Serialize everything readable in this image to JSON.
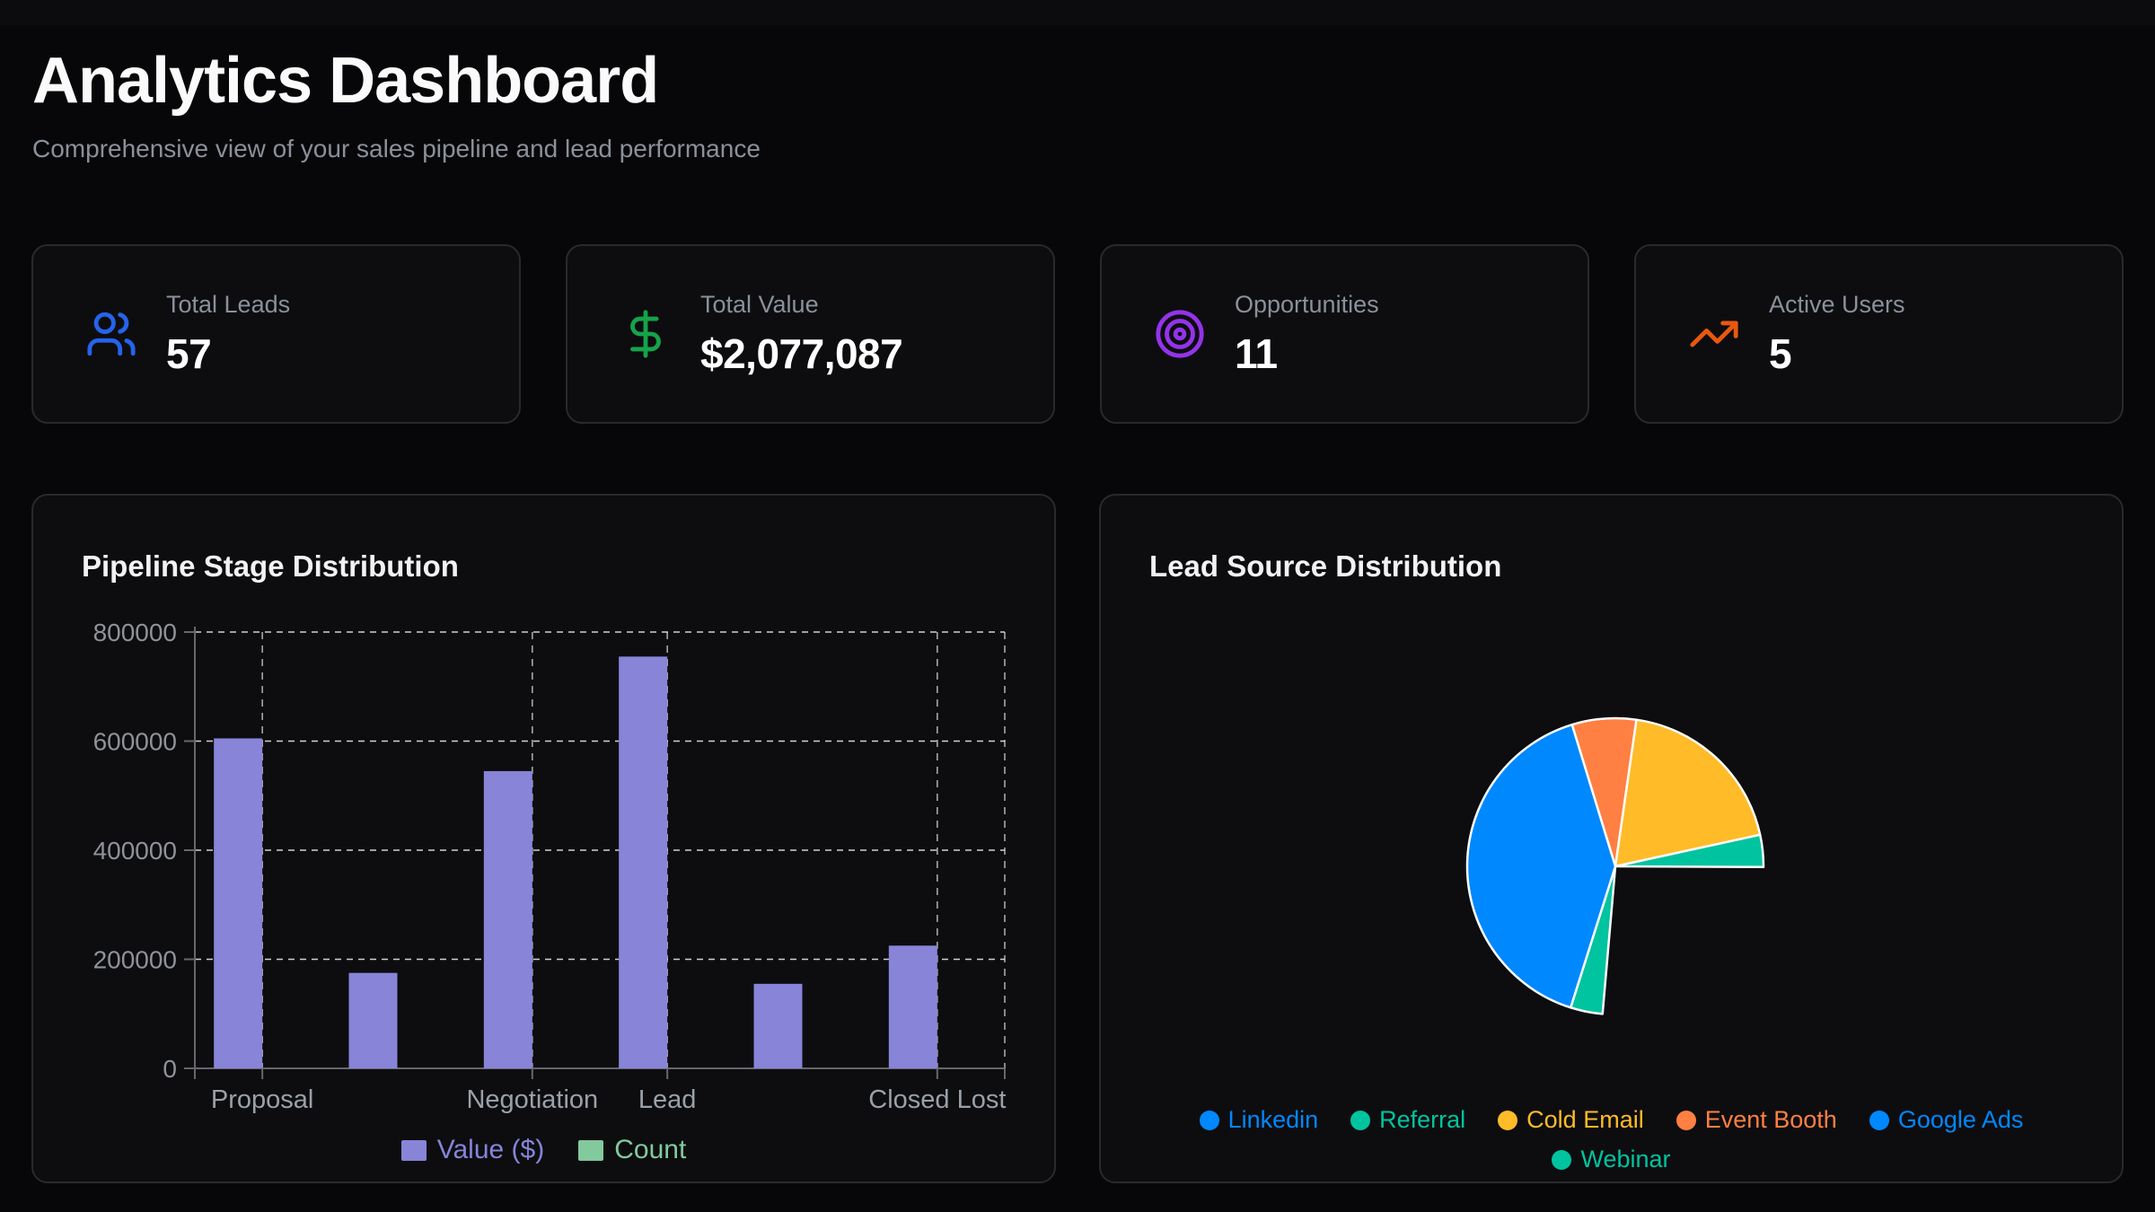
{
  "header": {
    "title": "Analytics Dashboard",
    "subtitle": "Comprehensive view of your sales pipeline and lead performance"
  },
  "stats": [
    {
      "label": "Total Leads",
      "value": "57",
      "icon": "users-icon",
      "color": "#2563eb"
    },
    {
      "label": "Total Value",
      "value": "$2,077,087",
      "icon": "dollar-sign-icon",
      "color": "#16a34a"
    },
    {
      "label": "Opportunities",
      "value": "11",
      "icon": "target-icon",
      "color": "#9333ea"
    },
    {
      "label": "Active Users",
      "value": "5",
      "icon": "trending-up-icon",
      "color": "#ea580c"
    }
  ],
  "chart_data": [
    {
      "type": "bar",
      "title": "Pipeline Stage Distribution",
      "categories": [
        "Proposal",
        "",
        "Negotiation",
        "Lead",
        "",
        "Closed Lost"
      ],
      "series": [
        {
          "name": "Value ($)",
          "color": "#8884d8",
          "values": [
            605000,
            175000,
            545000,
            755000,
            155000,
            225000
          ]
        },
        {
          "name": "Count",
          "color": "#82ca9d",
          "values": [
            null,
            null,
            null,
            null,
            null,
            null
          ]
        }
      ],
      "ylabel": "",
      "xlabel": "",
      "ylim": [
        0,
        800000
      ],
      "yticks": [
        0,
        200000,
        400000,
        600000,
        800000
      ],
      "grid": "dashed",
      "legend_position": "bottom"
    },
    {
      "type": "pie",
      "title": "Lead Source Distribution",
      "start_angle_deg": -17,
      "direction": "clockwise",
      "slices": [
        {
          "label": "Event Booth",
          "color": "#FF8042",
          "pct": 7.0,
          "hidden": false
        },
        {
          "label": "Cold Email",
          "color": "#FFBB28",
          "pct": 19.3,
          "hidden": false
        },
        {
          "label": "Webinar",
          "color": "#00C49F",
          "pct": 3.5,
          "hidden": false
        },
        {
          "label": "Google Ads",
          "color": "#0088FE",
          "pct": 26.3,
          "hidden": true
        },
        {
          "label": "Referral",
          "color": "#00C49F",
          "pct": 3.5,
          "hidden": false
        },
        {
          "label": "Linkedin",
          "color": "#0088FE",
          "pct": 40.4,
          "hidden": false
        }
      ],
      "legend": [
        {
          "label": "Linkedin",
          "color": "#0088FE",
          "row": 1
        },
        {
          "label": "Referral",
          "color": "#00C49F",
          "row": 1
        },
        {
          "label": "Cold Email",
          "color": "#FFBB28",
          "row": 1
        },
        {
          "label": "Event Booth",
          "color": "#FF8042",
          "row": 1
        },
        {
          "label": "Google Ads",
          "color": "#0088FE",
          "row": 1
        },
        {
          "label": "Webinar",
          "color": "#00C49F",
          "row": 2
        }
      ],
      "legend_position": "bottom"
    }
  ],
  "theme": {
    "page_bg": "#070709",
    "card_bg": "#0d0d10",
    "card_border": "#29292e",
    "muted_text": "#8b909a",
    "axis_text": "#8f9298",
    "axis_line": "#66676c",
    "grid_line": "#e8e8e8",
    "pie_slice_border": "#ffffff"
  }
}
